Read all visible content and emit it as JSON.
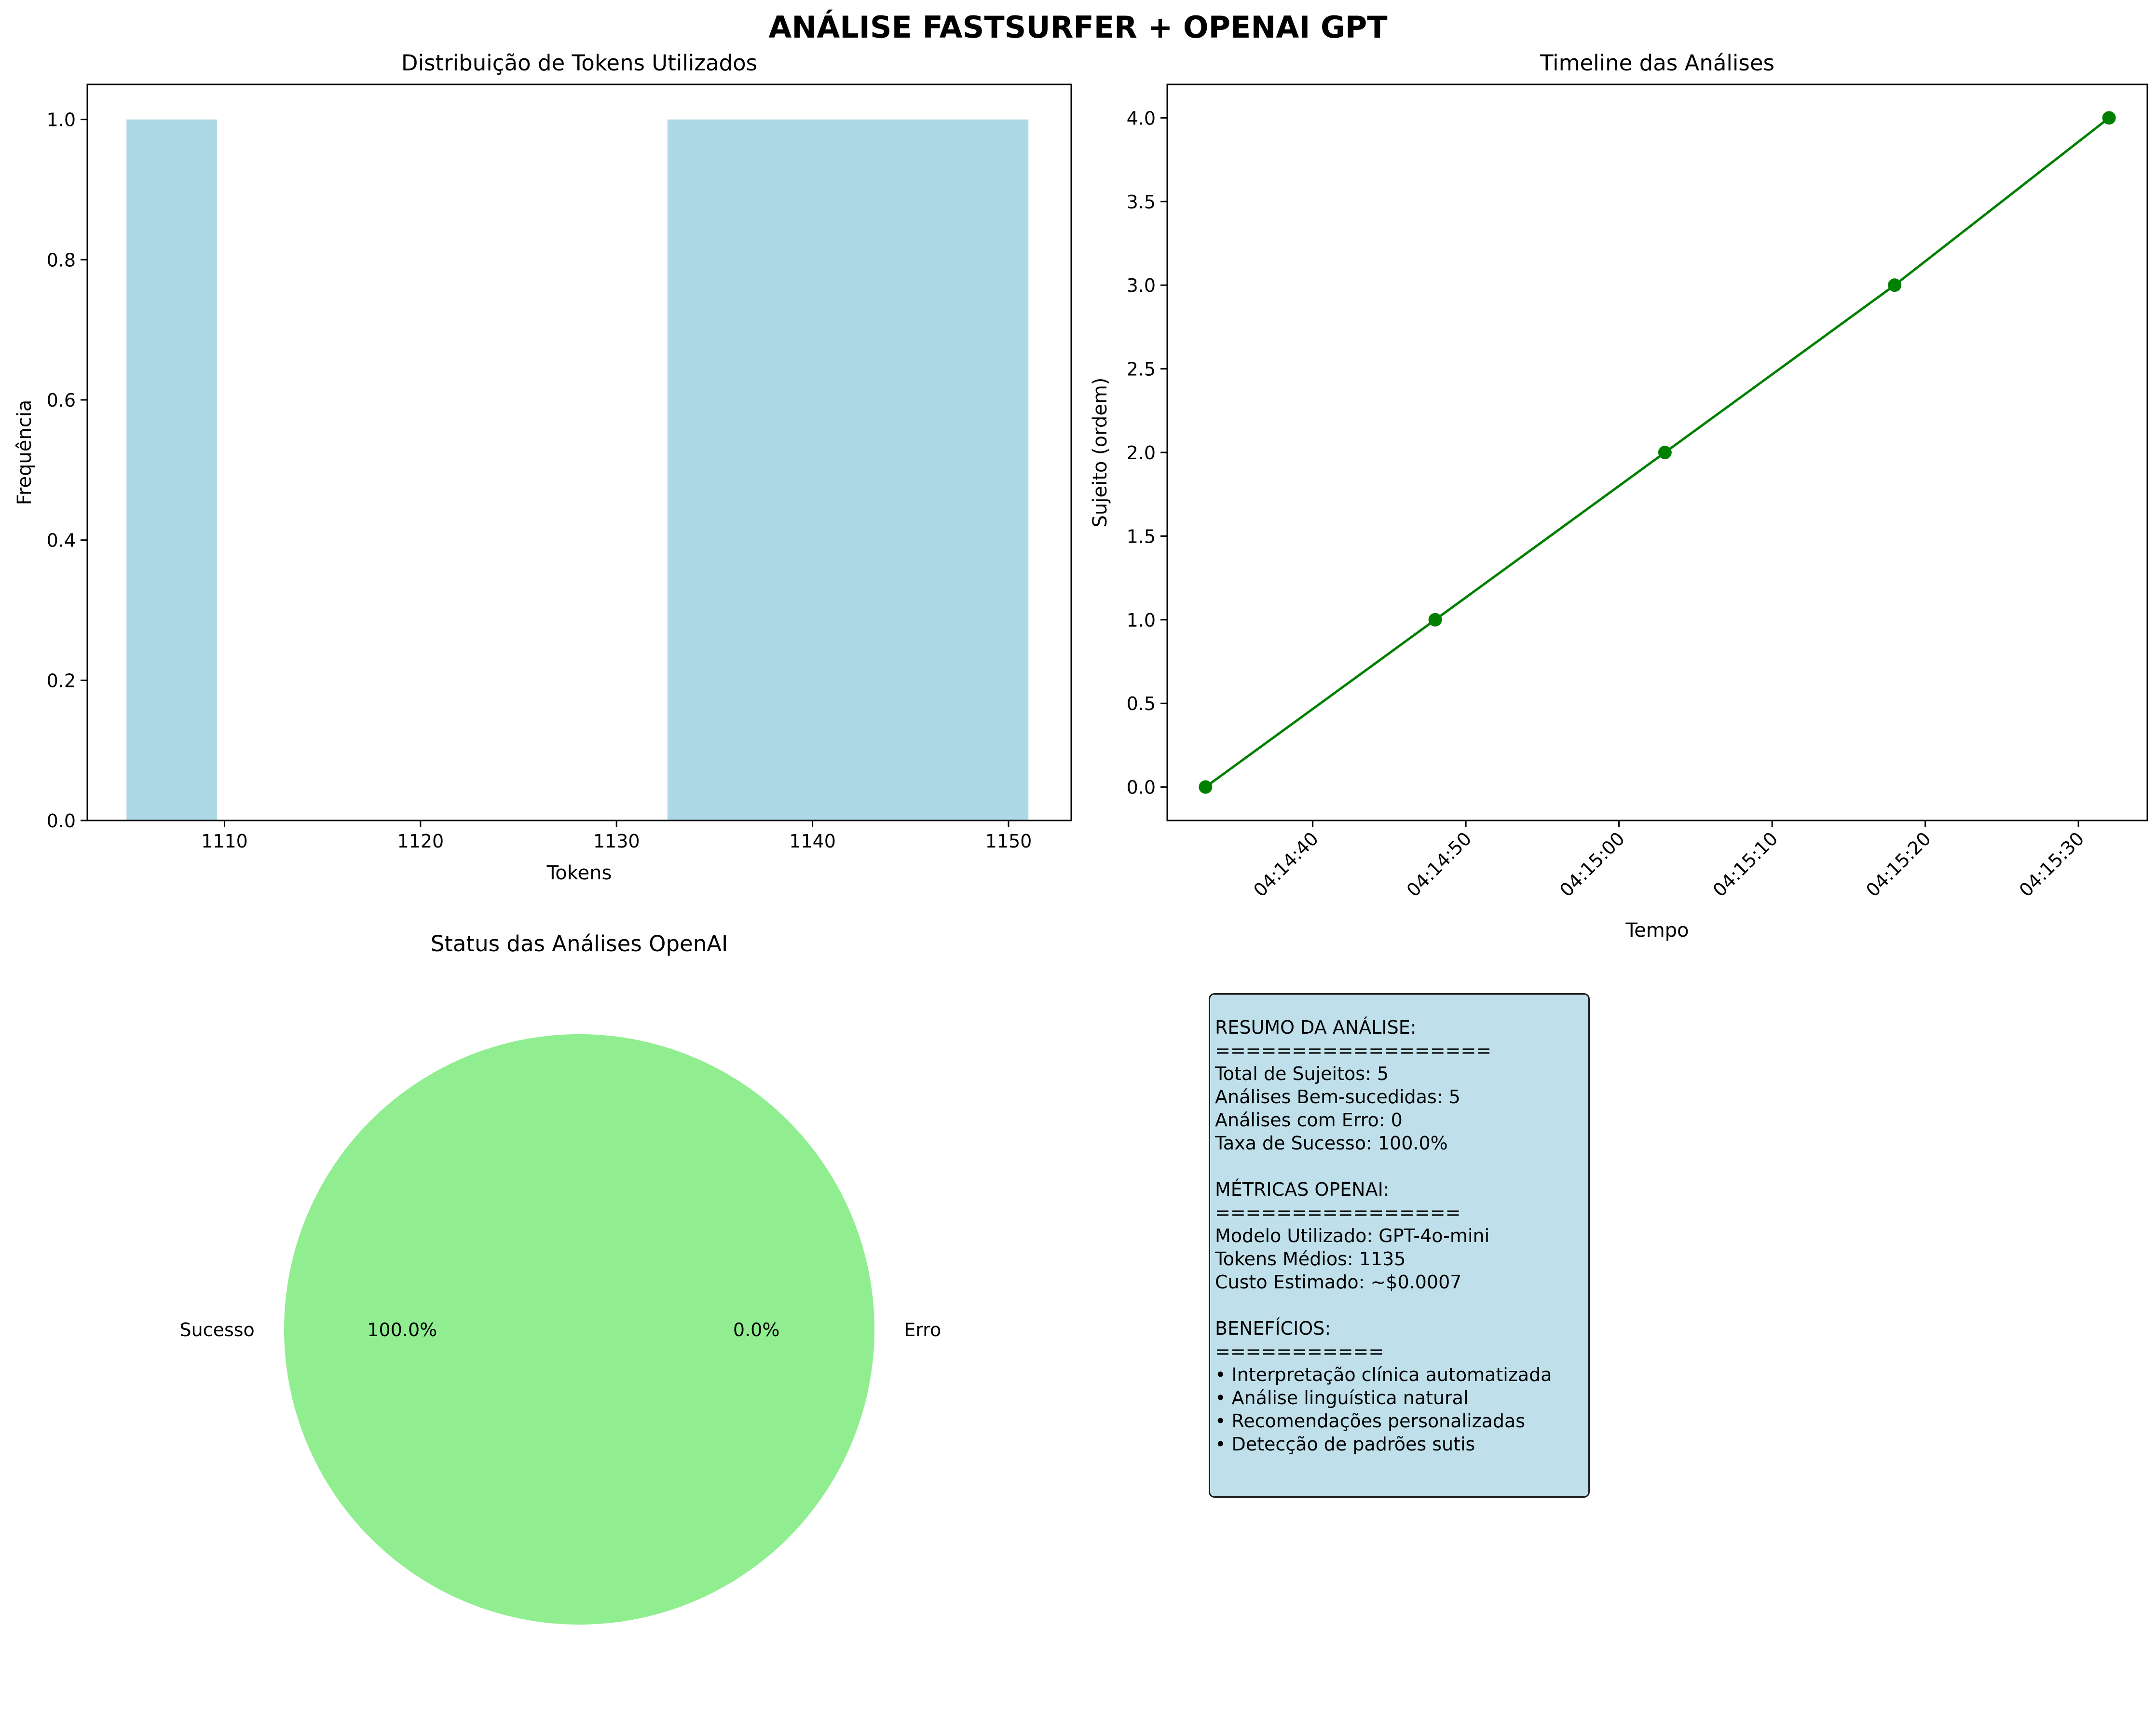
{
  "figure_title": "ANÁLISE FASTSURFER + OPENAI GPT",
  "colors": {
    "hist": "#add8e6",
    "line": "#008000",
    "pie_success": "#90ee90",
    "pie_error": "#f08080",
    "summary_bg": "#bfe0eb"
  },
  "chart_data": [
    {
      "type": "bar",
      "subtype": "histogram",
      "title": "Distribuição de Tokens Utilizados",
      "xlabel": "Tokens",
      "ylabel": "Frequência",
      "xlim": [
        1103,
        1153.2
      ],
      "ylim": [
        0,
        1.05
      ],
      "xticks": [
        1110,
        1120,
        1130,
        1140,
        1150
      ],
      "yticks": [
        0.0,
        0.2,
        0.4,
        0.6,
        0.8,
        1.0
      ],
      "bins": [
        {
          "start": 1105,
          "end": 1109.6,
          "count": 1
        },
        {
          "start": 1109.6,
          "end": 1114.2,
          "count": 0
        },
        {
          "start": 1114.2,
          "end": 1118.8,
          "count": 0
        },
        {
          "start": 1118.8,
          "end": 1123.4,
          "count": 0
        },
        {
          "start": 1123.4,
          "end": 1128.0,
          "count": 0
        },
        {
          "start": 1128.0,
          "end": 1132.6,
          "count": 0
        },
        {
          "start": 1132.6,
          "end": 1137.2,
          "count": 1
        },
        {
          "start": 1137.2,
          "end": 1141.8,
          "count": 1
        },
        {
          "start": 1141.8,
          "end": 1146.4,
          "count": 1
        },
        {
          "start": 1146.4,
          "end": 1151.0,
          "count": 1
        }
      ]
    },
    {
      "type": "line",
      "title": "Timeline das Análises",
      "xlabel": "Tempo",
      "ylabel": "Sujeito (ordem)",
      "x": [
        "04:14:33",
        "04:14:48",
        "04:15:03",
        "04:15:18",
        "04:15:32"
      ],
      "y": [
        0,
        1,
        2,
        3,
        4
      ],
      "xlim": [
        "04:14:30.5",
        "04:15:34.5"
      ],
      "ylim": [
        -0.2,
        4.2
      ],
      "xticks": [
        "04:14:40",
        "04:14:50",
        "04:15:00",
        "04:15:10",
        "04:15:20",
        "04:15:30"
      ],
      "yticks": [
        0.0,
        0.5,
        1.0,
        1.5,
        2.0,
        2.5,
        3.0,
        3.5,
        4.0
      ],
      "marker": "circle"
    },
    {
      "type": "pie",
      "title": "Status das Análises OpenAI",
      "labels": [
        "Sucesso",
        "Erro"
      ],
      "values": [
        5,
        0
      ],
      "percent_labels": [
        "100.0%",
        "0.0%"
      ]
    }
  ],
  "summary": {
    "lines": [
      "RESUMO DA ANÁLISE:",
      "==================",
      "Total de Sujeitos: 5",
      "Análises Bem-sucedidas: 5",
      "Análises com Erro: 0",
      "Taxa de Sucesso: 100.0%",
      "",
      "MÉTRICAS OPENAI:",
      "================",
      "Modelo Utilizado: GPT-4o-mini",
      "Tokens Médios: 1135",
      "Custo Estimado: ~$0.0007",
      "",
      "BENEFÍCIOS:",
      "===========",
      "• Interpretação clínica automatizada",
      "• Análise linguística natural",
      "• Recomendações personalizadas",
      "• Detecção de padrões sutis"
    ]
  }
}
